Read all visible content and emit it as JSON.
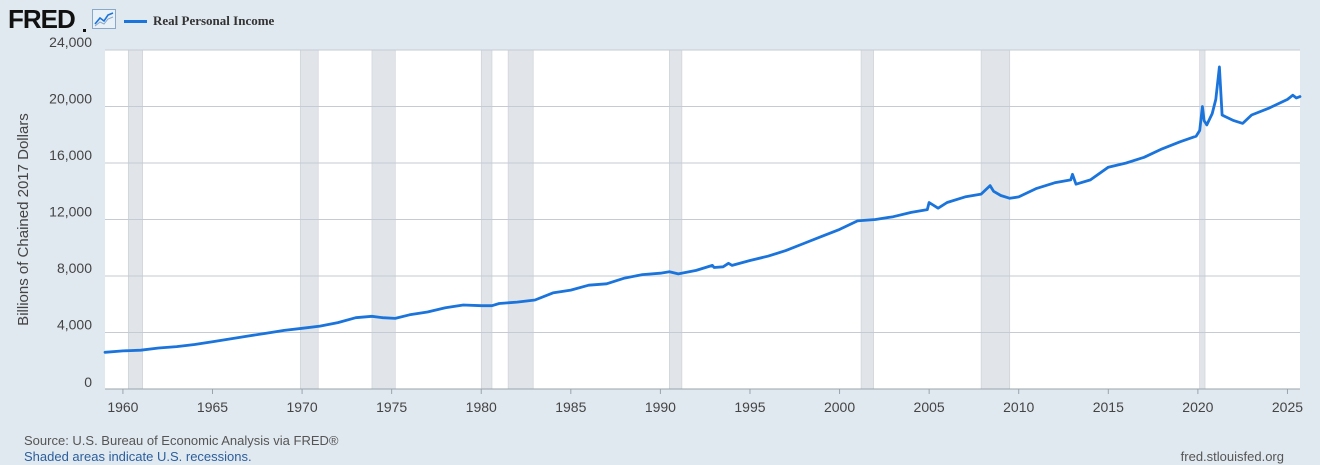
{
  "header": {
    "logo_text": "FRED",
    "logo_icon": "line-graph-icon",
    "legend_label": "Real Personal Income"
  },
  "colors": {
    "series": "#1a74db",
    "plot_bg": "#ffffff",
    "page_bg": "#e1e9f0",
    "recession_fill": "#e1e5e9",
    "grid": "#c5cbd2"
  },
  "footer": {
    "source": "Source: U.S. Bureau of Economic Analysis via FRED®",
    "recession_note": "Shaded areas indicate U.S. recessions.",
    "url": "fred.stlouisfed.org"
  },
  "chart_data": {
    "type": "line",
    "title": "",
    "xlabel": "",
    "ylabel": "Billions of Chained 2017 Dollars",
    "xlim": [
      1959.0,
      2025.7
    ],
    "ylim": [
      0,
      24000
    ],
    "y_ticks": [
      0,
      4000,
      8000,
      12000,
      16000,
      20000,
      24000
    ],
    "y_tick_labels": [
      "0",
      "4,000",
      "8,000",
      "12,000",
      "16,000",
      "20,000",
      "24,000"
    ],
    "x_ticks": [
      1960,
      1965,
      1970,
      1975,
      1980,
      1985,
      1990,
      1995,
      2000,
      2005,
      2010,
      2015,
      2020,
      2025
    ],
    "grid": true,
    "legend_position": "top-left",
    "recessions": [
      [
        1960.3,
        1961.1
      ],
      [
        1969.9,
        1970.9
      ],
      [
        1973.9,
        1975.2
      ],
      [
        1980.0,
        1980.6
      ],
      [
        1981.5,
        1982.9
      ],
      [
        1990.5,
        1991.2
      ],
      [
        2001.2,
        2001.9
      ],
      [
        2007.9,
        2009.5
      ],
      [
        2020.1,
        2020.4
      ]
    ],
    "series": [
      {
        "name": "Real Personal Income",
        "x": [
          1959.0,
          1960.0,
          1961.0,
          1962.0,
          1963.0,
          1964.0,
          1965.0,
          1966.0,
          1967.0,
          1968.0,
          1969.0,
          1970.0,
          1971.0,
          1972.0,
          1973.0,
          1973.9,
          1974.5,
          1975.2,
          1976.0,
          1977.0,
          1978.0,
          1979.0,
          1980.0,
          1980.6,
          1981.0,
          1982.0,
          1983.0,
          1984.0,
          1985.0,
          1986.0,
          1987.0,
          1988.0,
          1989.0,
          1990.0,
          1990.5,
          1991.0,
          1992.0,
          1992.9,
          1993.0,
          1993.5,
          1993.8,
          1994.0,
          1995.0,
          1996.0,
          1997.0,
          1998.0,
          1999.0,
          2000.0,
          2001.0,
          2002.0,
          2003.0,
          2004.0,
          2004.9,
          2005.0,
          2005.5,
          2006.0,
          2007.0,
          2007.9,
          2008.4,
          2008.6,
          2009.0,
          2009.5,
          2010.0,
          2011.0,
          2012.0,
          2012.9,
          2013.0,
          2013.2,
          2014.0,
          2015.0,
          2016.0,
          2017.0,
          2018.0,
          2019.0,
          2019.9,
          2020.1,
          2020.25,
          2020.35,
          2020.5,
          2020.8,
          2021.0,
          2021.2,
          2021.35,
          2021.5,
          2022.0,
          2022.5,
          2023.0,
          2024.0,
          2025.0,
          2025.3,
          2025.5,
          2025.7
        ],
        "values": [
          2600,
          2700,
          2750,
          2900,
          3000,
          3150,
          3350,
          3550,
          3750,
          3950,
          4150,
          4300,
          4450,
          4700,
          5050,
          5150,
          5050,
          5000,
          5250,
          5450,
          5750,
          5950,
          5900,
          5900,
          6050,
          6150,
          6300,
          6800,
          7000,
          7350,
          7450,
          7850,
          8100,
          8200,
          8300,
          8150,
          8400,
          8750,
          8600,
          8650,
          8900,
          8750,
          9100,
          9400,
          9800,
          10300,
          10800,
          11300,
          11900,
          12000,
          12200,
          12500,
          12700,
          13200,
          12800,
          13200,
          13600,
          13800,
          14400,
          14000,
          13700,
          13500,
          13600,
          14200,
          14600,
          14800,
          15200,
          14500,
          14800,
          15700,
          16000,
          16400,
          17000,
          17500,
          17900,
          18300,
          20000,
          19000,
          18700,
          19500,
          20500,
          22800,
          19400,
          19300,
          19000,
          18800,
          19400,
          19900,
          20500,
          20800,
          20600,
          20700
        ]
      }
    ]
  }
}
